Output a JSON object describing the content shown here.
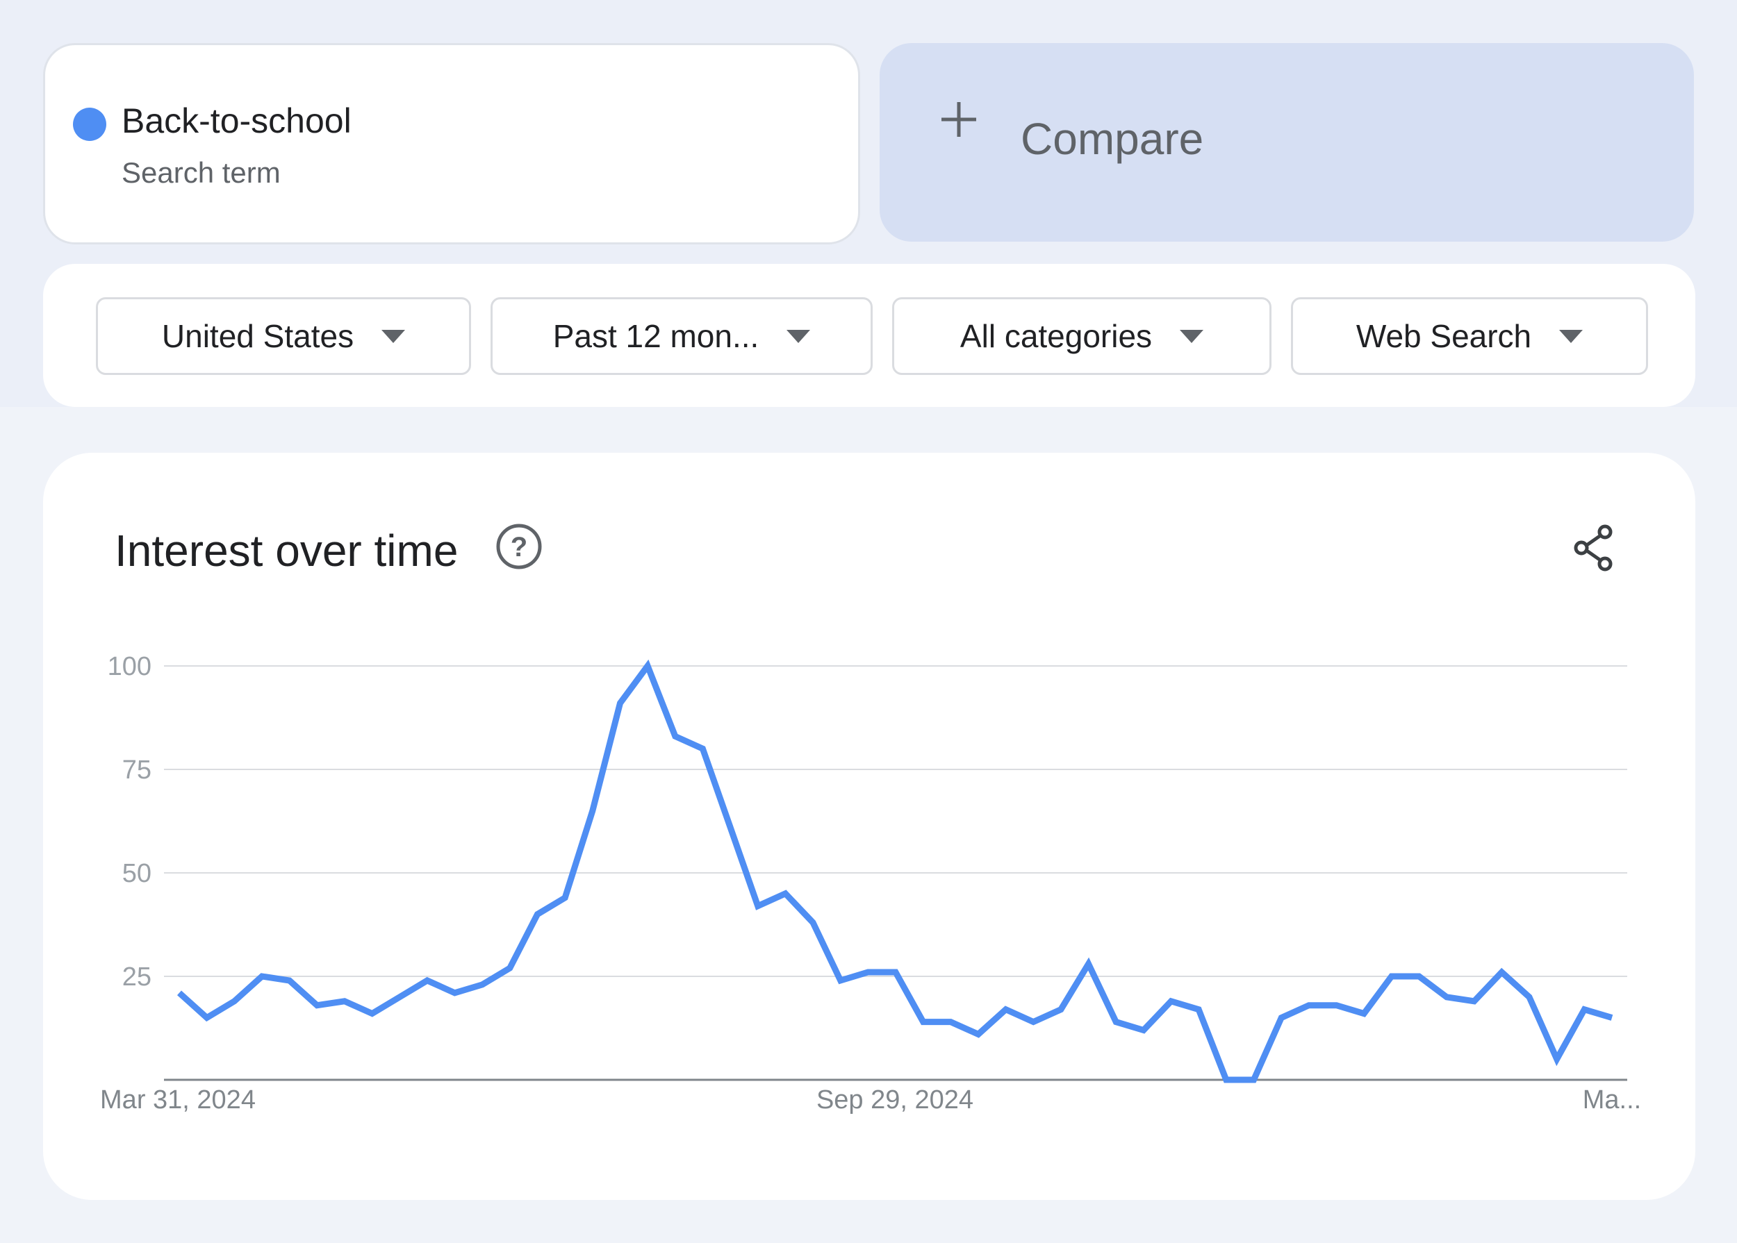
{
  "search_term": {
    "title": "Back-to-school",
    "subtitle": "Search term",
    "dot_color": "#4f8ef3"
  },
  "compare": {
    "icon": "plus-icon",
    "label": "Compare"
  },
  "filters": {
    "region": "United States",
    "time_range": "Past 12 mon...",
    "category": "All categories",
    "search_type": "Web Search"
  },
  "chart_card": {
    "title": "Interest over time",
    "help_icon": "help-circle-icon",
    "share_icon": "share-icon"
  },
  "chart_data": {
    "type": "line",
    "ylim": [
      0,
      100
    ],
    "y_ticks": [
      "100",
      "75",
      "50",
      "25"
    ],
    "x_tick_labels": [
      "Mar 31, 2024",
      "Sep 29, 2024",
      "Ma..."
    ],
    "grid": true,
    "line_color": "#4f8ef3",
    "series": [
      {
        "values": [
          21,
          15,
          19,
          25,
          24,
          18,
          19,
          16,
          20,
          24,
          21,
          23,
          27,
          40,
          44,
          65,
          91,
          100,
          83,
          80,
          61,
          42,
          45,
          38,
          24,
          26,
          26,
          14,
          14,
          11,
          17,
          14,
          17,
          28,
          14,
          12,
          19,
          17,
          0,
          0,
          15,
          18,
          18,
          16,
          25,
          25,
          20,
          19,
          26,
          20,
          5,
          17,
          15
        ]
      }
    ]
  }
}
